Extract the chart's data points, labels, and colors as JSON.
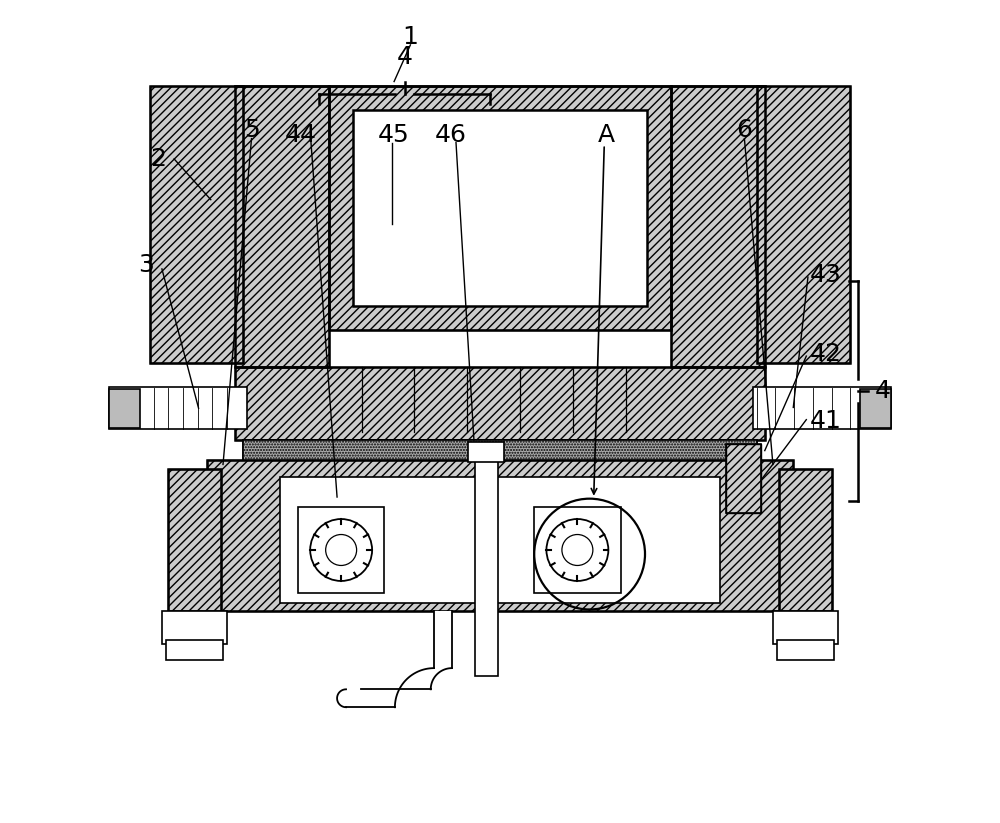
{
  "background_color": "#ffffff",
  "line_color": "#000000",
  "hatch_pattern": "////",
  "fig_width": 10.0,
  "fig_height": 8.23,
  "label_fs": 18
}
